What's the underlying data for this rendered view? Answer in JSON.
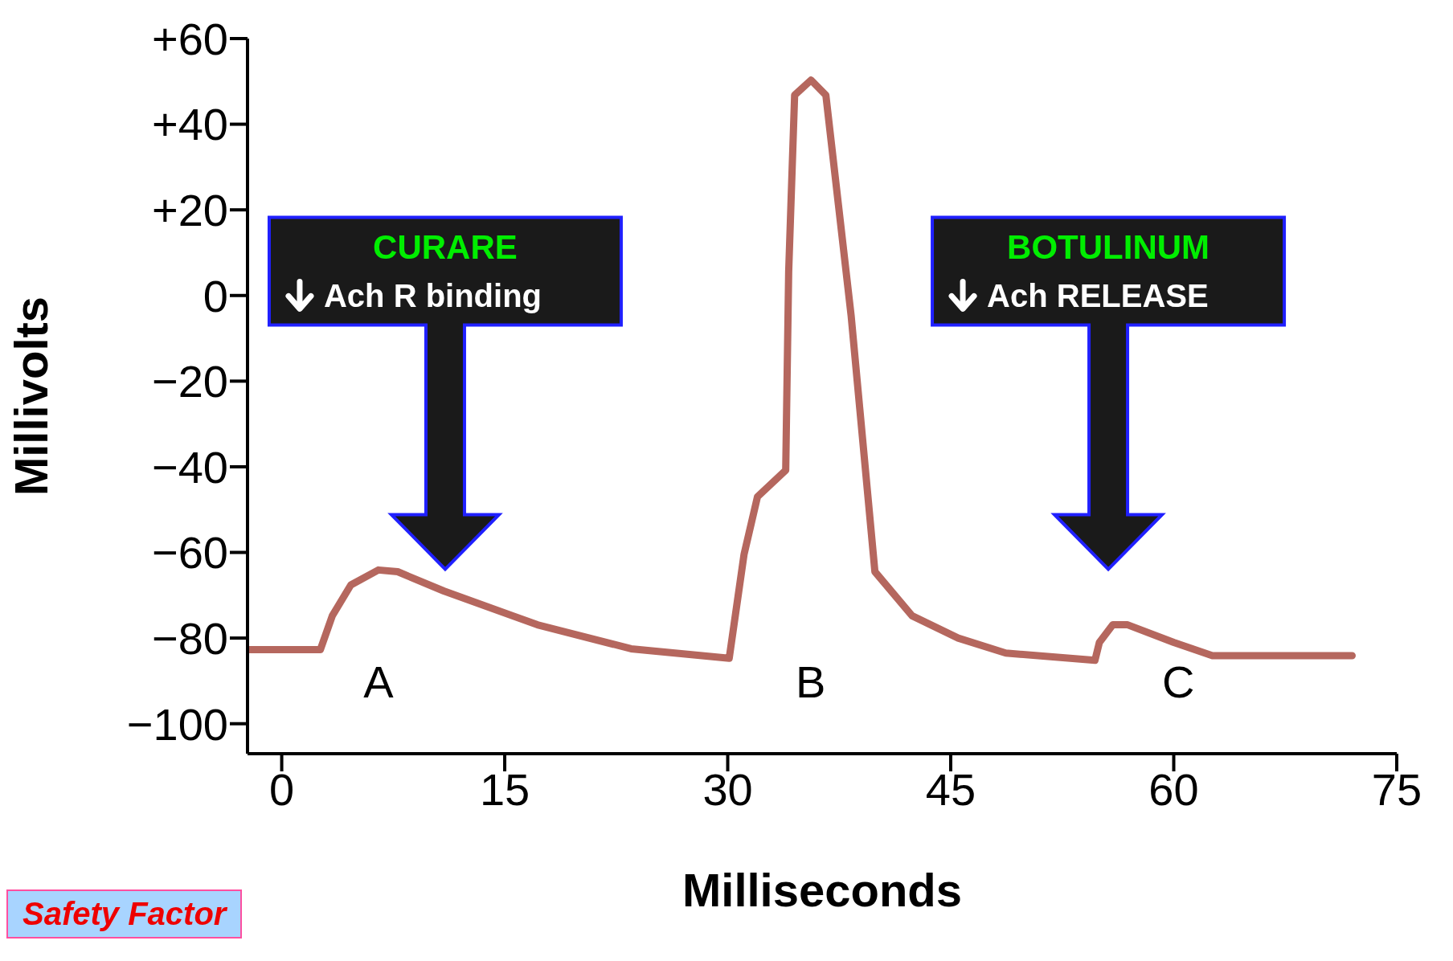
{
  "chart_data": {
    "type": "line",
    "xlabel": "Milliseconds",
    "ylabel": "Millivolts",
    "color": "#b5675e",
    "line_style": "solid",
    "x": [
      -2.3,
      2.6,
      3.4,
      4.65,
      6.5,
      7.8,
      10.9,
      17.2,
      23.5,
      30.1,
      31.1,
      32,
      33.9,
      34.1,
      34.5,
      35.6,
      36.6,
      38.3,
      39.9,
      42.4,
      45.5,
      48.7,
      54.7,
      55,
      55.9,
      56.9,
      60,
      62.6,
      72
    ],
    "values": [
      -82.7,
      -82.7,
      -74.8,
      -67.6,
      -64.1,
      -64.5,
      -69,
      -76.9,
      -82.5,
      -84.7,
      -60.4,
      -47,
      -40.8,
      5.6,
      46.8,
      50.3,
      46.8,
      -4.7,
      -64.5,
      -74.8,
      -80,
      -83.5,
      -85.2,
      -81,
      -76.9,
      -76.9,
      -81,
      -84.1,
      -84.1
    ],
    "xlim": [
      -2.3,
      75
    ],
    "xticks": [
      0,
      15,
      30,
      45,
      60,
      75
    ],
    "ylim": [
      -107,
      60
    ],
    "yticks": [
      {
        "value": 60,
        "label": "+60"
      },
      {
        "value": 40,
        "label": "+40"
      },
      {
        "value": 20,
        "label": "+20"
      },
      0,
      {
        "value": -20,
        "label": "−20"
      },
      {
        "value": -40,
        "label": "−40"
      },
      {
        "value": -60,
        "label": "−60"
      },
      {
        "value": -80,
        "label": "−80"
      },
      {
        "value": -100,
        "label": "−100"
      }
    ],
    "annotations": [
      "A",
      "B",
      "C",
      "CURARE",
      "Ach R binding",
      "BOTULINUM",
      "Ach RELEASE",
      "Safety Factor"
    ]
  }
}
